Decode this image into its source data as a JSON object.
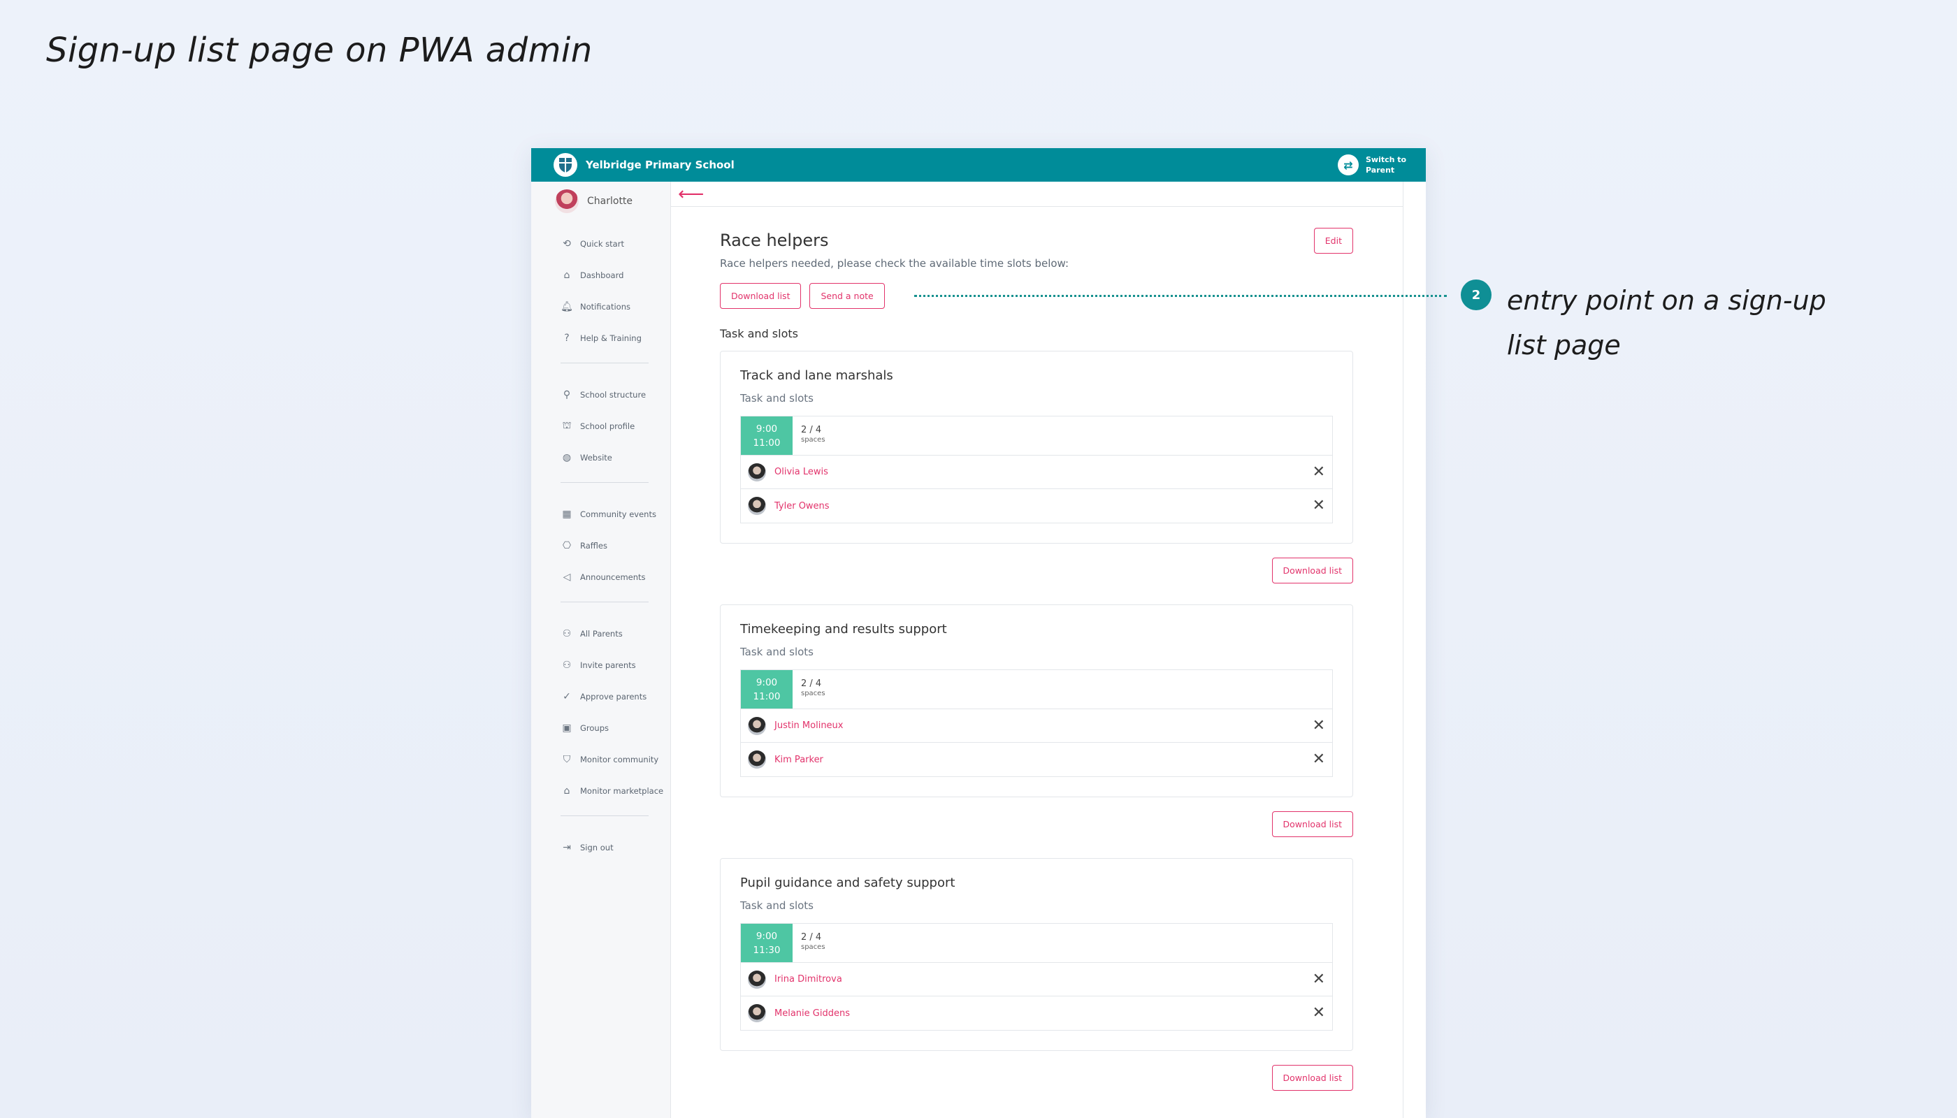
{
  "slide": {
    "title": "Sign-up list page on PWA admin",
    "annotation": {
      "number": "2",
      "text": "entry point on a sign-up list page"
    }
  },
  "topbar": {
    "school_name": "Yelbridge Primary School",
    "switch_label": "Switch to Parent"
  },
  "sidebar": {
    "user_name": "Charlotte",
    "groups": [
      [
        {
          "label": "Quick start",
          "icon": "quick-start-icon"
        },
        {
          "label": "Dashboard",
          "icon": "home-icon"
        },
        {
          "label": "Notifications",
          "icon": "bell-icon"
        },
        {
          "label": "Help & Training",
          "icon": "help-icon"
        }
      ],
      [
        {
          "label": "School structure",
          "icon": "structure-icon"
        },
        {
          "label": "School profile",
          "icon": "school-icon"
        },
        {
          "label": "Website",
          "icon": "globe-icon"
        }
      ],
      [
        {
          "label": "Community events",
          "icon": "calendar-icon"
        },
        {
          "label": "Raffles",
          "icon": "ticket-icon"
        },
        {
          "label": "Announcements",
          "icon": "megaphone-icon"
        }
      ],
      [
        {
          "label": "All Parents",
          "icon": "parents-icon"
        },
        {
          "label": "Invite parents",
          "icon": "invite-icon"
        },
        {
          "label": "Approve parents",
          "icon": "approve-icon"
        },
        {
          "label": "Groups",
          "icon": "groups-icon"
        },
        {
          "label": "Monitor community",
          "icon": "shield-icon"
        },
        {
          "label": "Monitor marketplace",
          "icon": "store-icon"
        }
      ],
      [
        {
          "label": "Sign out",
          "icon": "sign-out-icon"
        }
      ]
    ]
  },
  "page": {
    "title": "Race helpers",
    "edit_label": "Edit",
    "subtitle": "Race helpers needed, please check the available time slots below:",
    "download_label": "Download list",
    "send_note_label": "Send a note",
    "section_label": "Task and slots",
    "tasks": [
      {
        "title": "Track and lane marshals",
        "sub": "Task and slots",
        "slot": {
          "start": "9:00",
          "end": "11:00",
          "count": "2 / 4",
          "unit": "spaces"
        },
        "people": [
          "Olivia Lewis",
          "Tyler Owens"
        ],
        "footer_label": "Download list"
      },
      {
        "title": "Timekeeping and results support",
        "sub": "Task and slots",
        "slot": {
          "start": "9:00",
          "end": "11:00",
          "count": "2 / 4",
          "unit": "spaces"
        },
        "people": [
          "Justin Molineux",
          "Kim Parker"
        ],
        "footer_label": "Download list"
      },
      {
        "title": "Pupil guidance and safety support",
        "sub": "Task and slots",
        "slot": {
          "start": "9:00",
          "end": "11:30",
          "count": "2 / 4",
          "unit": "spaces"
        },
        "people": [
          "Irina Dimitrova",
          "Melanie Giddens"
        ],
        "footer_label": "Download list"
      }
    ]
  },
  "colors": {
    "brand": "#008c99",
    "accent": "#e2336b",
    "slot": "#4ec6a3",
    "badge": "#0f8f95"
  }
}
